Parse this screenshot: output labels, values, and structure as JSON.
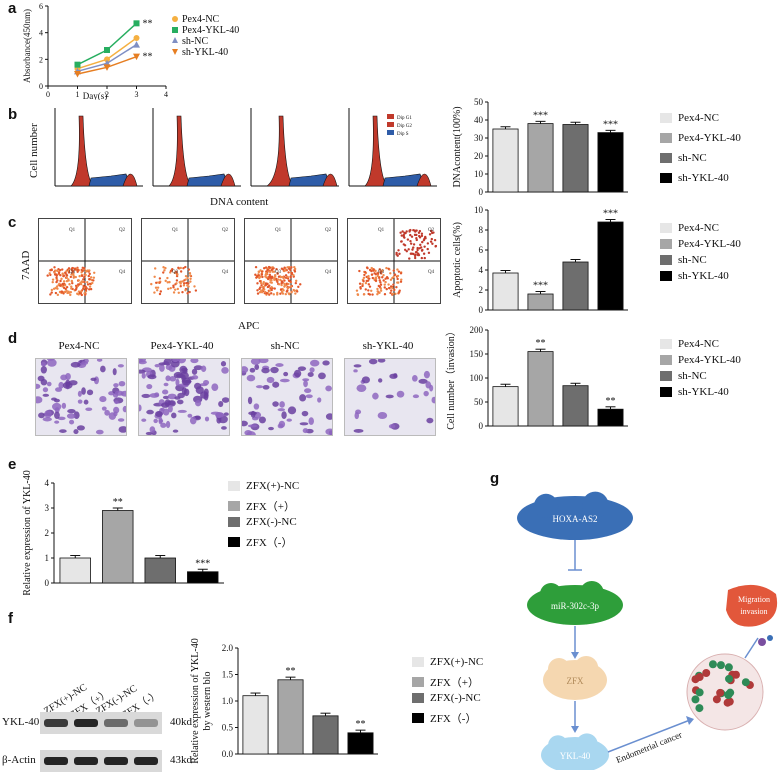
{
  "panels": {
    "a": {
      "label": "a",
      "chart_data": {
        "type": "line",
        "xlabel": "Day(s)",
        "ylabel": "Absorbance(450nm)",
        "xlim": [
          0,
          4
        ],
        "ylim": [
          0,
          6
        ],
        "xticks": [
          "0",
          "1",
          "2",
          "3",
          "4"
        ],
        "yticks": [
          "0",
          "2",
          "4",
          "6"
        ],
        "x": [
          1,
          2,
          3
        ],
        "series": [
          {
            "name": "Pex4-NC",
            "values": [
              1.3,
              2.0,
              3.6
            ],
            "color": "#f5b041"
          },
          {
            "name": "Pex4-YKL-40",
            "values": [
              1.6,
              2.7,
              4.7
            ],
            "color": "#27ae60"
          },
          {
            "name": "sh-NC",
            "values": [
              1.1,
              1.7,
              3.1
            ],
            "color": "#7f8fc4"
          },
          {
            "name": "sh-YKL-40",
            "values": [
              0.9,
              1.4,
              2.2
            ],
            "color": "#e67e22"
          }
        ],
        "annotations": [
          "**",
          "**"
        ]
      }
    },
    "b": {
      "label": "b",
      "hist_ylabel": "Cell number",
      "hist_xlabel": "DNA content",
      "hist_legend": [
        "Dip G1",
        "Dip G2",
        "Dip S"
      ],
      "chart_data": {
        "type": "bar",
        "ylabel": "DNAcontent(100%)",
        "ylim": [
          0,
          50
        ],
        "yticks": [
          "0",
          "10",
          "20",
          "30",
          "40",
          "50"
        ],
        "categories": [
          "Pex4-NC",
          "Pex4-YKL-40",
          "sh-NC",
          "sh-YKL-40"
        ],
        "values": [
          35,
          38,
          37.5,
          33
        ],
        "colors": [
          "#e6e6e6",
          "#a6a6a6",
          "#6e6e6e",
          "#000000"
        ],
        "annotations": [
          "",
          "***",
          "",
          "***"
        ]
      }
    },
    "c": {
      "label": "c",
      "flow_ylabel": "7AAD",
      "flow_xlabel": "APC",
      "quadrants": [
        "Q1",
        "Q2",
        "Q3",
        "Q4"
      ],
      "chart_data": {
        "type": "bar",
        "ylabel": "Apoptotic cells(%)",
        "ylim": [
          0,
          10
        ],
        "yticks": [
          "0",
          "2",
          "4",
          "6",
          "8",
          "10"
        ],
        "categories": [
          "Pex4-NC",
          "Pex4-YKL-40",
          "sh-NC",
          "sh-YKL-40"
        ],
        "values": [
          3.7,
          1.6,
          4.8,
          8.8
        ],
        "colors": [
          "#e6e6e6",
          "#a6a6a6",
          "#6e6e6e",
          "#000000"
        ],
        "annotations": [
          "",
          "***",
          "",
          "***"
        ]
      }
    },
    "d": {
      "label": "d",
      "image_titles": [
        "Pex4-NC",
        "Pex4-YKL-40",
        "sh-NC",
        "sh-YKL-40"
      ],
      "chart_data": {
        "type": "bar",
        "ylabel": "Cell number（invasion）",
        "ylim": [
          0,
          200
        ],
        "yticks": [
          "0",
          "50",
          "100",
          "150",
          "200"
        ],
        "categories": [
          "Pex4-NC",
          "Pex4-YKL-40",
          "sh-NC",
          "sh-YKL-40"
        ],
        "values": [
          82,
          155,
          84,
          35
        ],
        "colors": [
          "#e6e6e6",
          "#a6a6a6",
          "#6e6e6e",
          "#000000"
        ],
        "annotations": [
          "",
          "**",
          "",
          "**"
        ]
      }
    },
    "e": {
      "label": "e",
      "chart_data": {
        "type": "bar",
        "ylabel": "Relative expression of YKL-40",
        "ylim": [
          0,
          4
        ],
        "yticks": [
          "0",
          "1",
          "2",
          "3",
          "4"
        ],
        "categories": [
          "ZFX(+)-NC",
          "ZFX（+）",
          "ZFX(-)-NC",
          "ZFX（-）"
        ],
        "values": [
          1.0,
          2.9,
          1.0,
          0.45
        ],
        "colors": [
          "#e6e6e6",
          "#a6a6a6",
          "#6e6e6e",
          "#000000"
        ],
        "annotations": [
          "",
          "**",
          "",
          "***"
        ]
      }
    },
    "f": {
      "label": "f",
      "blot_lanes": [
        "ZFX(+)-NC",
        "ZFX（+）",
        "ZFX(-)-NC",
        "ZFX（-）"
      ],
      "blot_rows": [
        {
          "name": "YKL-40",
          "size": "40kd"
        },
        {
          "name": "β-Actin",
          "size": "43kd"
        }
      ],
      "chart_data": {
        "type": "bar",
        "ylabel": "Relative expression of YKL-40",
        "ylabel2": "by western blo",
        "ylim": [
          0,
          2.0
        ],
        "yticks": [
          "0.0",
          "0.5",
          "1.0",
          "1.5",
          "2.0"
        ],
        "categories": [
          "ZFX(+)-NC",
          "ZFX（+）",
          "ZFX(-)-NC",
          "ZFX（-）"
        ],
        "values": [
          1.1,
          1.4,
          0.72,
          0.4
        ],
        "colors": [
          "#e6e6e6",
          "#a6a6a6",
          "#6e6e6e",
          "#000000"
        ],
        "annotations": [
          "",
          "**",
          "",
          "**"
        ]
      }
    },
    "g": {
      "label": "g",
      "nodes": [
        "HOXA-AS2",
        "miR-302c-3p",
        "ZFX",
        "YKL-40",
        "Migration invasion"
      ],
      "arrow_label": "Endometrial cancer"
    }
  }
}
